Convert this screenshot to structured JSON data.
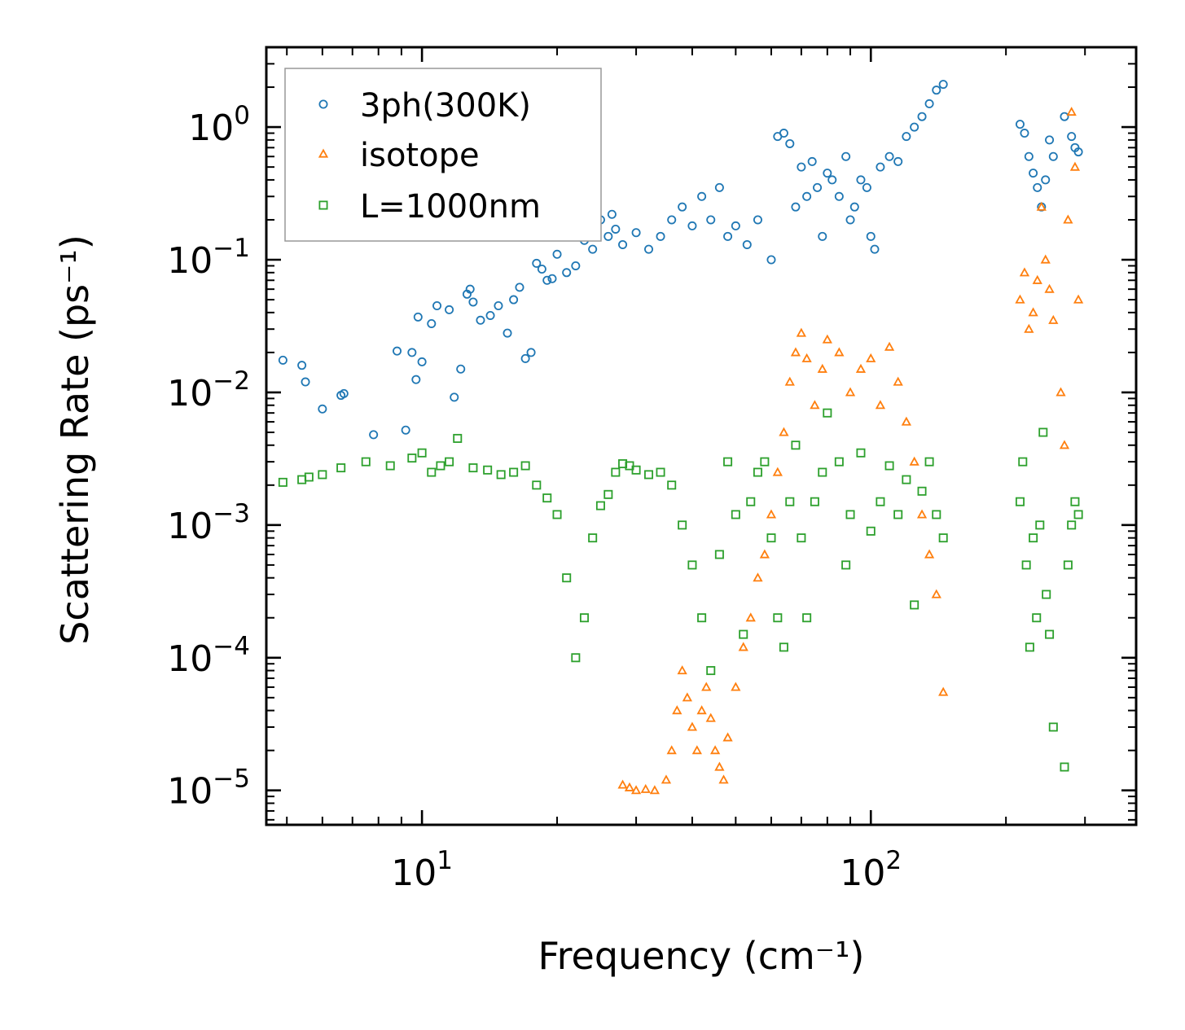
{
  "chart_data": {
    "type": "scatter",
    "title": "",
    "xlabel": "Frequency (cm⁻¹)",
    "ylabel": "Scattering Rate (ps⁻¹)",
    "xscale": "log",
    "yscale": "log",
    "xlim": [
      4.5,
      390
    ],
    "ylim": [
      5.5e-06,
      4.0
    ],
    "legend_position": "top-left",
    "x_ticks": [
      {
        "value": 10,
        "base": "10",
        "exp": "1"
      },
      {
        "value": 100,
        "base": "10",
        "exp": "2"
      }
    ],
    "y_ticks": [
      {
        "value": 1,
        "base": "10",
        "exp": "0"
      },
      {
        "value": 0.1,
        "base": "10",
        "exp": "−1"
      },
      {
        "value": 0.01,
        "base": "10",
        "exp": "−2"
      },
      {
        "value": 0.001,
        "base": "10",
        "exp": "−3"
      },
      {
        "value": 0.0001,
        "base": "10",
        "exp": "−4"
      },
      {
        "value": 1e-05,
        "base": "10",
        "exp": "−5"
      }
    ],
    "series": [
      {
        "name": "3ph(300K)",
        "marker": "circle",
        "color": "#1f77b4",
        "x": [
          4.9,
          5.4,
          5.5,
          6.0,
          6.6,
          6.7,
          7.8,
          8.8,
          9.2,
          9.5,
          9.7,
          9.8,
          10.0,
          10.5,
          10.8,
          11.5,
          11.8,
          12.2,
          12.6,
          12.8,
          13.0,
          13.5,
          14.2,
          14.8,
          15.5,
          16.0,
          16.5,
          17.0,
          17.5,
          18.0,
          18.5,
          19.0,
          19.5,
          20.0,
          21.0,
          22.0,
          23.0,
          24.0,
          25.0,
          26.0,
          26.5,
          27.0,
          28.0,
          30.0,
          32.0,
          34.0,
          36.0,
          38.0,
          40.0,
          42.0,
          44.0,
          46.0,
          48.0,
          50.0,
          53.0,
          56.0,
          60.0,
          62.0,
          64.0,
          66.0,
          68.0,
          70.0,
          72.0,
          74.0,
          76.0,
          78.0,
          80.0,
          82.0,
          85.0,
          88.0,
          90.0,
          92.0,
          95.0,
          98.0,
          100.0,
          102.0,
          105.0,
          110.0,
          115.0,
          120.0,
          125.0,
          130.0,
          135.0,
          140.0,
          145.0,
          215.0,
          220.0,
          225.0,
          230.0,
          235.0,
          240.0,
          245.0,
          250.0,
          255.0,
          270.0,
          280.0,
          285.0,
          290.0
        ],
        "y": [
          0.0175,
          0.016,
          0.012,
          0.0075,
          0.0095,
          0.0098,
          0.0048,
          0.0205,
          0.0052,
          0.02,
          0.0125,
          0.037,
          0.017,
          0.033,
          0.045,
          0.042,
          0.0092,
          0.015,
          0.055,
          0.06,
          0.048,
          0.035,
          0.038,
          0.045,
          0.028,
          0.05,
          0.062,
          0.018,
          0.02,
          0.094,
          0.085,
          0.07,
          0.072,
          0.11,
          0.08,
          0.09,
          0.14,
          0.12,
          0.2,
          0.15,
          0.22,
          0.17,
          0.13,
          0.16,
          0.12,
          0.15,
          0.2,
          0.25,
          0.18,
          0.3,
          0.2,
          0.35,
          0.15,
          0.18,
          0.13,
          0.2,
          0.1,
          0.85,
          0.9,
          0.75,
          0.25,
          0.5,
          0.3,
          0.55,
          0.35,
          0.15,
          0.45,
          0.4,
          0.3,
          0.6,
          0.2,
          0.25,
          0.4,
          0.35,
          0.15,
          0.12,
          0.5,
          0.6,
          0.55,
          0.85,
          1.0,
          1.2,
          1.5,
          1.9,
          2.1,
          1.05,
          0.9,
          0.6,
          0.45,
          0.35,
          0.25,
          0.4,
          0.8,
          0.6,
          1.2,
          0.85,
          0.7,
          0.65
        ]
      },
      {
        "name": "isotope",
        "marker": "triangle",
        "color": "#ff7f0e",
        "x": [
          28.0,
          29.0,
          30.0,
          31.5,
          33.0,
          35.0,
          36.0,
          37.0,
          38.0,
          39.0,
          40.0,
          41.0,
          42.0,
          43.0,
          44.0,
          45.0,
          46.0,
          47.0,
          48.0,
          50.0,
          52.0,
          54.0,
          56.0,
          58.0,
          60.0,
          62.0,
          64.0,
          66.0,
          68.0,
          70.0,
          72.0,
          75.0,
          78.0,
          80.0,
          85.0,
          90.0,
          95.0,
          100.0,
          105.0,
          110.0,
          115.0,
          120.0,
          125.0,
          130.0,
          135.0,
          140.0,
          145.0,
          215.0,
          220.0,
          225.0,
          230.0,
          235.0,
          240.0,
          245.0,
          250.0,
          255.0,
          265.0,
          270.0,
          275.0,
          280.0,
          285.0,
          290.0
        ],
        "y": [
          1.1e-05,
          1.05e-05,
          1e-05,
          1.02e-05,
          1e-05,
          1.2e-05,
          2e-05,
          4e-05,
          8e-05,
          5e-05,
          3e-05,
          2e-05,
          4e-05,
          6e-05,
          3.5e-05,
          2e-05,
          1.5e-05,
          1.2e-05,
          2.5e-05,
          6e-05,
          0.00012,
          0.0002,
          0.0004,
          0.0006,
          0.0012,
          0.0025,
          0.005,
          0.012,
          0.02,
          0.028,
          0.018,
          0.008,
          0.015,
          0.025,
          0.02,
          0.01,
          0.015,
          0.018,
          0.008,
          0.022,
          0.012,
          0.006,
          0.003,
          0.0012,
          0.0006,
          0.0003,
          5.5e-05,
          0.05,
          0.08,
          0.03,
          0.04,
          0.07,
          0.25,
          0.1,
          0.06,
          0.035,
          0.01,
          0.004,
          0.2,
          1.3,
          0.5,
          0.05
        ],
        "labeled_points": []
      },
      {
        "name": "L=1000nm",
        "marker": "square",
        "color": "#2ca02c",
        "x": [
          4.9,
          5.4,
          5.6,
          6.0,
          6.6,
          7.5,
          8.5,
          9.5,
          10.0,
          10.5,
          11.0,
          11.5,
          12.0,
          13.0,
          14.0,
          15.0,
          16.0,
          17.0,
          18.0,
          19.0,
          20.0,
          21.0,
          22.0,
          23.0,
          24.0,
          25.0,
          26.0,
          27.0,
          28.0,
          29.0,
          30.0,
          32.0,
          34.0,
          36.0,
          38.0,
          40.0,
          42.0,
          44.0,
          46.0,
          48.0,
          50.0,
          52.0,
          54.0,
          56.0,
          58.0,
          60.0,
          62.0,
          64.0,
          66.0,
          68.0,
          70.0,
          72.0,
          75.0,
          78.0,
          80.0,
          85.0,
          88.0,
          90.0,
          95.0,
          100.0,
          105.0,
          110.0,
          115.0,
          120.0,
          125.0,
          130.0,
          135.0,
          140.0,
          145.0,
          215.0,
          218.0,
          222.0,
          226.0,
          230.0,
          234.0,
          238.0,
          242.0,
          246.0,
          250.0,
          255.0,
          270.0,
          275.0,
          280.0,
          285.0,
          290.0
        ],
        "y": [
          0.0021,
          0.0022,
          0.0023,
          0.0024,
          0.0027,
          0.003,
          0.0028,
          0.0032,
          0.0035,
          0.0025,
          0.0028,
          0.003,
          0.0045,
          0.0027,
          0.0026,
          0.0024,
          0.0025,
          0.0028,
          0.002,
          0.0016,
          0.0012,
          0.0004,
          0.0001,
          0.0002,
          0.0008,
          0.0014,
          0.0017,
          0.0025,
          0.0029,
          0.0028,
          0.0026,
          0.0024,
          0.0025,
          0.002,
          0.001,
          0.0005,
          0.0002,
          8e-05,
          0.0006,
          0.003,
          0.0012,
          0.00015,
          0.0015,
          0.0025,
          0.003,
          0.0008,
          0.0002,
          0.00012,
          0.0015,
          0.004,
          0.0008,
          0.0002,
          0.0015,
          0.0025,
          0.007,
          0.003,
          0.0005,
          0.0012,
          0.0035,
          0.0009,
          0.0015,
          0.0028,
          0.0012,
          0.0022,
          0.00025,
          0.0018,
          0.003,
          0.0012,
          0.0008,
          0.0015,
          0.003,
          0.0005,
          0.00012,
          0.0008,
          0.0002,
          0.001,
          0.005,
          0.0003,
          0.00015,
          3e-05,
          1.5e-05,
          0.0005,
          0.001,
          0.0015,
          0.0012
        ]
      }
    ]
  }
}
